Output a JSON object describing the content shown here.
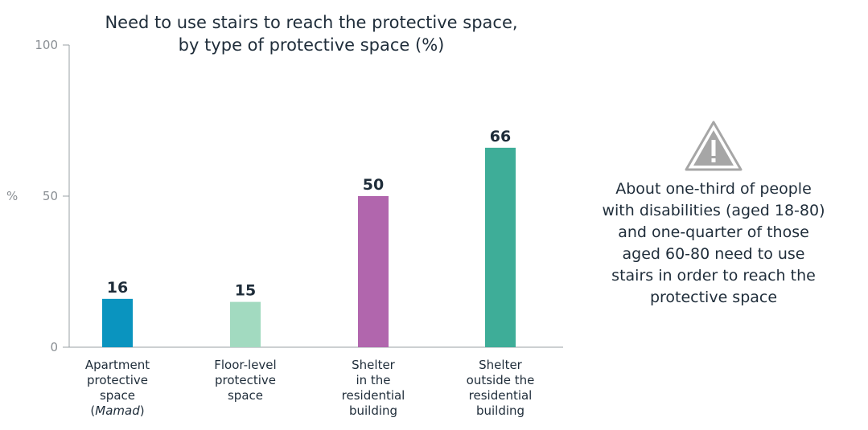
{
  "chart_data": {
    "type": "bar",
    "title_lines": [
      "Need to use stairs to reach the protective space,",
      "by type of protective space (%)"
    ],
    "ylabel": "%",
    "ylim": [
      0,
      100
    ],
    "yticks": [
      "0",
      "50",
      "100"
    ],
    "categories": [
      [
        "Apartment",
        "protective",
        "space",
        "(Mamad)"
      ],
      [
        "Floor-level",
        "protective",
        "space"
      ],
      [
        "Shelter",
        "in the",
        "residential",
        "building"
      ],
      [
        "Shelter",
        "outside the",
        "residential",
        "building"
      ]
    ],
    "values": [
      16,
      15,
      50,
      66
    ],
    "value_labels": [
      "16",
      "15",
      "50",
      "66"
    ],
    "colors": [
      "#0a94bf",
      "#a2dac0",
      "#b166ad",
      "#3ead98"
    ]
  },
  "callout": {
    "icon": "warning-triangle-icon",
    "lines": [
      "About one-third of people",
      "with disabilities (aged 18-80)",
      "and one-quarter of those",
      "aged 60-80 need to use",
      "stairs in order to reach the",
      "protective space"
    ]
  }
}
